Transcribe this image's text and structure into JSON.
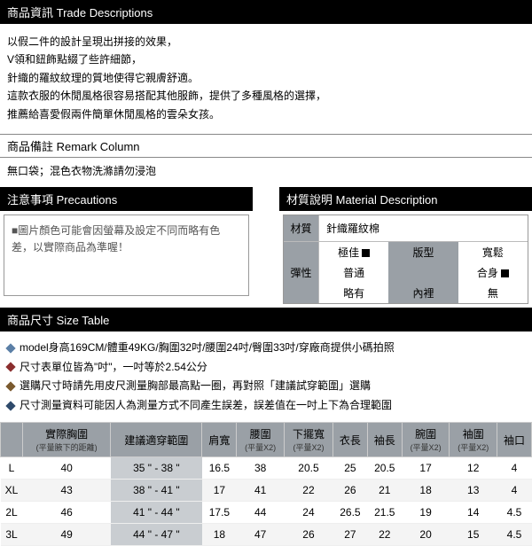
{
  "headers": {
    "trade": "商品資訊 Trade Descriptions",
    "remark": "商品備註 Remark Column",
    "precautions": "注意事項 Precautions",
    "material": "材質說明 Material Description",
    "size": "商品尺寸 Size Table"
  },
  "trade_lines": [
    "以假二件的設計呈現出拼接的效果，",
    "V領和鈕飾點綴了些許細節，",
    "針織的羅紋紋理的質地使得它親膚舒適。",
    "這款衣服的休閒風格很容易搭配其他服飾，提供了多種風格的選擇，",
    "推薦給喜愛假兩件簡單休閒風格的雲朵女孩。"
  ],
  "remark_body": "無口袋；混色衣物洗滌請勿浸泡",
  "precautions_body": "■圖片顏色可能會因螢幕及設定不同而略有色差，以實際商品為準喔！",
  "material": {
    "label_material": "材質",
    "material_value": "針織羅紋棉",
    "label_elastic": "彈性",
    "elastic_opts": [
      "極佳",
      "普通",
      "略有"
    ],
    "label_fit": "版型",
    "fit_opts": [
      "寬鬆",
      "合身"
    ],
    "label_lining": "內裡",
    "lining_value": "無"
  },
  "size_notes": [
    {
      "color": "d-blue",
      "text": "model身高169CM/體重49KG/胸圍32吋/腰圍24吋/臀圍33吋/穿廠商提供小碼拍照"
    },
    {
      "color": "d-red",
      "text": "尺寸表單位皆為\"吋\"，一吋等於2.54公分"
    },
    {
      "color": "d-brown",
      "text": "選購尺寸時請先用皮尺測量胸部最高點一圈，再對照「建議試穿範圍」選購"
    },
    {
      "color": "d-dkblue",
      "text": "尺寸測量資料可能因人為測量方式不同產生誤差，誤差值在一吋上下為合理範圍"
    }
  ],
  "size_table": {
    "columns": [
      {
        "t": "",
        "s": ""
      },
      {
        "t": "實際胸圍",
        "s": "(平量腋下的距離)"
      },
      {
        "t": "建議適穿範圍",
        "s": ""
      },
      {
        "t": "肩寬",
        "s": ""
      },
      {
        "t": "腰圍",
        "s": "(平量X2)"
      },
      {
        "t": "下擺寬",
        "s": "(平量X2)"
      },
      {
        "t": "衣長",
        "s": ""
      },
      {
        "t": "袖長",
        "s": ""
      },
      {
        "t": "腕圍",
        "s": "(平量X2)"
      },
      {
        "t": "袖圍",
        "s": "(平量X2)"
      },
      {
        "t": "袖口",
        "s": ""
      }
    ],
    "rows": [
      [
        "L",
        "40",
        "35 \" - 38 \"",
        "16.5",
        "38",
        "20.5",
        "25",
        "20.5",
        "17",
        "12",
        "4"
      ],
      [
        "XL",
        "43",
        "38 \" - 41 \"",
        "17",
        "41",
        "22",
        "26",
        "21",
        "18",
        "13",
        "4"
      ],
      [
        "2L",
        "46",
        "41 \" - 44 \"",
        "17.5",
        "44",
        "24",
        "26.5",
        "21.5",
        "19",
        "14",
        "4.5"
      ],
      [
        "3L",
        "49",
        "44 \" - 47 \"",
        "18",
        "47",
        "26",
        "27",
        "22",
        "20",
        "15",
        "4.5"
      ]
    ]
  }
}
